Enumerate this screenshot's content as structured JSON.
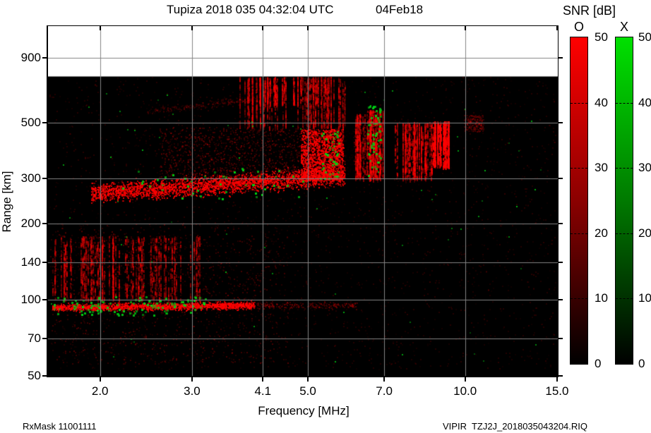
{
  "header": {
    "title": "Tupiza 2018 035 04:32:04 UTC",
    "date": "04Feb18"
  },
  "footer": {
    "left": "RxMask 11001111",
    "right": "VIPIR  TZJ2J_2018035043204.RIQ"
  },
  "colorbar": {
    "title": "SNR [dB]",
    "o_label": "O",
    "x_label": "X",
    "min": 0,
    "max": 50,
    "ticks": [
      50,
      40,
      30,
      20,
      10,
      0
    ],
    "tick_labels": [
      "50",
      "40",
      "30",
      "20",
      "10",
      "0"
    ],
    "o_top_color": "#ff0000",
    "o_mid_color": "#8b0000",
    "x_top_color": "#00e000",
    "x_mid_color": "#007a00",
    "bottom_color": "#000000"
  },
  "chart_data": {
    "type": "heatmap",
    "subtype": "ionogram",
    "title": "Tupiza 2018 035 04:32:04 UTC 04Feb18",
    "xlabel": "Frequency [MHz]",
    "ylabel": "Range [km]",
    "x_scale": "log",
    "y_scale": "log",
    "x_ticks": [
      2.0,
      3.0,
      4.1,
      5.0,
      7.0,
      10.0,
      15.0
    ],
    "x_tick_labels": [
      "2.0",
      "3.0",
      "4.1",
      "5.0",
      "7.0",
      "10.0",
      "15.0"
    ],
    "y_ticks": [
      900,
      500,
      300,
      200,
      140,
      100,
      70,
      50
    ],
    "y_tick_labels": [
      "900",
      "500",
      "300",
      "200",
      "140",
      "100",
      "70",
      "50"
    ],
    "axes": {
      "f_min": 1.59,
      "f_max": 15.05,
      "r_min": 50,
      "r_max": 1200,
      "data_top_km": 760
    },
    "grid": {
      "color": "#848484",
      "x_lines": [
        2.0,
        3.0,
        4.1,
        5.0,
        7.0,
        10.0
      ],
      "y_lines": [
        900,
        500,
        300,
        200,
        140,
        100,
        70
      ]
    },
    "colors": {
      "o_mode": "255,0,0",
      "x_mode": "0,210,20",
      "background": "#000000",
      "no_data": "#ffffff"
    },
    "legend": {
      "o": "O-mode SNR (red), 0-50 dB",
      "x": "X-mode SNR (green), 0-50 dB"
    },
    "seed": 42,
    "features": [
      {
        "name": "background-noise",
        "kind": "speckle",
        "mode": "o",
        "f": [
          1.6,
          15.0
        ],
        "r": [
          52,
          755
        ],
        "n": 2600,
        "alpha": [
          0.04,
          0.16
        ],
        "size": 2
      },
      {
        "name": "lower-left-noise",
        "kind": "speckle",
        "mode": "o",
        "f": [
          1.6,
          4.6
        ],
        "r": [
          55,
          200
        ],
        "n": 1100,
        "alpha": [
          0.05,
          0.28
        ],
        "size": 2
      },
      {
        "name": "lowband-noise-columns",
        "kind": "columns",
        "mode": "o",
        "f": [
          1.62,
          3.1
        ],
        "r": [
          100,
          178
        ],
        "cols": 85,
        "alpha": [
          0.08,
          0.45
        ]
      },
      {
        "name": "e-layer-echo",
        "kind": "band",
        "mode": "o",
        "f": [
          1.62,
          3.95
        ],
        "rc": [
          93,
          95
        ],
        "sigma": 5,
        "n": 1900,
        "alpha": [
          0.2,
          0.95
        ]
      },
      {
        "name": "e-layer-weak-extension",
        "kind": "band",
        "mode": "o",
        "f": [
          3.95,
          6.2
        ],
        "rc": [
          95,
          95
        ],
        "sigma": 5,
        "n": 240,
        "alpha": [
          0.08,
          0.3
        ]
      },
      {
        "name": "f-layer-main-trace",
        "kind": "band",
        "mode": "o",
        "f": [
          1.92,
          5.9
        ],
        "rc": [
          263,
          308
        ],
        "sigma": 13,
        "n": 3000,
        "alpha": [
          0.25,
          1.0
        ]
      },
      {
        "name": "f-layer-diffuse-cloud",
        "kind": "speckle",
        "mode": "o",
        "f": [
          2.6,
          6.6
        ],
        "r": [
          300,
          480
        ],
        "n": 1500,
        "alpha": [
          0.06,
          0.3
        ],
        "size": 2
      },
      {
        "name": "bright-patch-5mhz",
        "kind": "speckle",
        "mode": "o",
        "f": [
          4.85,
          5.88
        ],
        "r": [
          290,
          470
        ],
        "n": 1600,
        "alpha": [
          0.25,
          1.0
        ],
        "size": 2
      },
      {
        "name": "red-columns-6p1-6p5",
        "kind": "columns",
        "mode": "o",
        "f": [
          6.12,
          6.5
        ],
        "r": [
          300,
          540
        ],
        "cols": 20,
        "alpha": [
          0.1,
          0.5
        ]
      },
      {
        "name": "red-columns-6p5-7",
        "kind": "columns",
        "mode": "o",
        "f": [
          6.5,
          6.98
        ],
        "r": [
          300,
          560
        ],
        "cols": 30,
        "alpha": [
          0.15,
          0.6
        ]
      },
      {
        "name": "red-columns-7p4-8p6",
        "kind": "columns",
        "mode": "o",
        "f": [
          7.35,
          8.65
        ],
        "r": [
          300,
          500
        ],
        "cols": 40,
        "alpha": [
          0.12,
          0.5
        ]
      },
      {
        "name": "bright-column-9mhz",
        "kind": "columns",
        "mode": "o",
        "f": [
          8.7,
          9.3
        ],
        "r": [
          335,
          505
        ],
        "cols": 26,
        "alpha": [
          0.3,
          0.85
        ]
      },
      {
        "name": "faint-cloud-10p5mhz",
        "kind": "speckle",
        "mode": "o",
        "f": [
          9.95,
          10.9
        ],
        "r": [
          455,
          535
        ],
        "n": 220,
        "alpha": [
          0.06,
          0.26
        ],
        "size": 2
      },
      {
        "name": "spread-f-upper-columns",
        "kind": "columns",
        "mode": "o",
        "f": [
          3.7,
          5.9
        ],
        "r": [
          480,
          755
        ],
        "cols": 60,
        "alpha": [
          0.08,
          0.4
        ]
      },
      {
        "name": "spread-f-top-columns",
        "kind": "columns",
        "mode": "o",
        "f": [
          4.0,
          5.4
        ],
        "r": [
          590,
          755
        ],
        "cols": 26,
        "alpha": [
          0.12,
          0.5
        ]
      },
      {
        "name": "faint-arc-550km",
        "kind": "band",
        "mode": "o",
        "f": [
          2.46,
          4.0
        ],
        "rc": [
          553,
          617
        ],
        "sigma": 5,
        "n": 220,
        "alpha": [
          0.06,
          0.2
        ]
      },
      {
        "name": "rfi-gap-6mhz",
        "kind": "gap",
        "f": [
          5.9,
          6.12
        ],
        "r": [
          265,
          640
        ],
        "alpha": 0.82
      },
      {
        "name": "rfi-gap-7mhz",
        "kind": "gap",
        "f": [
          6.98,
          7.3
        ],
        "r": [
          265,
          640
        ],
        "alpha": 0.82
      },
      {
        "name": "rfi-gap-9p7mhz",
        "kind": "gap",
        "f": [
          9.5,
          9.85
        ],
        "r": [
          265,
          640
        ],
        "alpha": 0.82
      },
      {
        "name": "e-layer-x-specks",
        "kind": "speckle",
        "mode": "x",
        "f": [
          1.63,
          3.3
        ],
        "r": [
          85,
          103
        ],
        "n": 115,
        "alpha": [
          0.5,
          1.0
        ],
        "size": 3
      },
      {
        "name": "f-trace-x-specks",
        "kind": "speckle",
        "mode": "x",
        "f": [
          2.2,
          5.0
        ],
        "r": [
          245,
          330
        ],
        "n": 45,
        "alpha": [
          0.45,
          1.0
        ],
        "size": 3
      },
      {
        "name": "x-speck-cluster-5p5mhz",
        "kind": "speckle",
        "mode": "x",
        "f": [
          5.28,
          5.78
        ],
        "r": [
          295,
          460
        ],
        "n": 44,
        "alpha": [
          0.5,
          1.0
        ],
        "size": 3
      },
      {
        "name": "x-speck-cluster-6p8mhz",
        "kind": "speckle",
        "mode": "x",
        "f": [
          6.5,
          6.98
        ],
        "r": [
          300,
          580
        ],
        "n": 55,
        "alpha": [
          0.5,
          1.0
        ],
        "size": 3
      },
      {
        "name": "scattered-x-dots",
        "kind": "speckle",
        "mode": "x",
        "f": [
          1.6,
          14.9
        ],
        "r": [
          55,
          750
        ],
        "n": 75,
        "alpha": [
          0.3,
          0.85
        ],
        "size": 2
      }
    ]
  }
}
